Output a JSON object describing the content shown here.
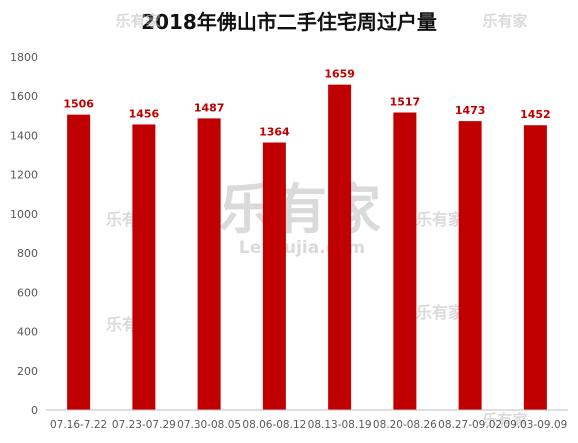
{
  "chart_data": {
    "type": "bar",
    "title": "2018年佛山市二手住宅周过户量",
    "categories": [
      "07.16-7.22",
      "07.23-07.29",
      "07.30-08.05",
      "08.06-08.12",
      "08.13-08.19",
      "08.20-08.26",
      "08.27-09.02",
      "09.03-09.09"
    ],
    "series": [
      {
        "values": [
          1506,
          1456,
          1487,
          1364,
          1659,
          1517,
          1473,
          1452
        ]
      }
    ],
    "ylim": [
      0,
      1800
    ],
    "yticks": [
      0,
      200,
      400,
      600,
      800,
      1000,
      1200,
      1400,
      1600,
      1800
    ],
    "grid": false,
    "colors": {
      "bar": "#c00000",
      "label": "#c00000",
      "axis": "#bfbfbf",
      "tick_text": "#595959"
    }
  },
  "watermark": {
    "logo_text": "乐有家",
    "site_text": "Leyoujia.com"
  }
}
